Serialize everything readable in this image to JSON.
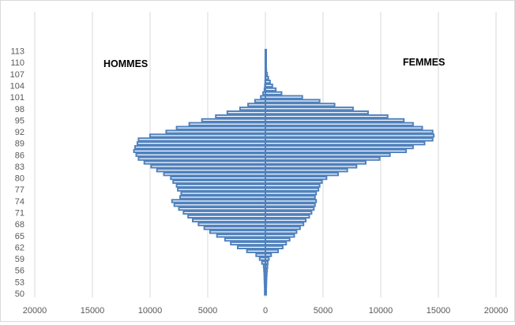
{
  "chart_data": {
    "type": "bar",
    "orientation": "horizontal",
    "subtype": "population-pyramid",
    "title": "",
    "xlabel": "",
    "ylabel": "",
    "xlim": [
      -20000,
      20000
    ],
    "x_ticks": [
      -20000,
      -15000,
      -10000,
      -5000,
      0,
      5000,
      10000,
      15000,
      20000
    ],
    "x_tick_labels": [
      "20000",
      "15000",
      "10000",
      "5000",
      "0",
      "5000",
      "10000",
      "15000",
      "20000"
    ],
    "y_tick_labels": [
      "50",
      "53",
      "56",
      "59",
      "62",
      "65",
      "68",
      "71",
      "74",
      "77",
      "80",
      "83",
      "86",
      "89",
      "92",
      "95",
      "98",
      "101",
      "104",
      "107",
      "110",
      "113"
    ],
    "categories": [
      50,
      51,
      52,
      53,
      54,
      55,
      56,
      57,
      58,
      59,
      60,
      61,
      62,
      63,
      64,
      65,
      66,
      67,
      68,
      69,
      70,
      71,
      72,
      73,
      74,
      75,
      76,
      77,
      78,
      79,
      80,
      81,
      82,
      83,
      84,
      85,
      86,
      87,
      88,
      89,
      90,
      91,
      92,
      93,
      94,
      95,
      96,
      97,
      98,
      99,
      100,
      101,
      102,
      103,
      104,
      105,
      106,
      107,
      108,
      109,
      110,
      111,
      112,
      113
    ],
    "series": [
      {
        "name": "HOMMES",
        "color": "#4f81bd",
        "values": [
          60,
          60,
          70,
          80,
          90,
          100,
          120,
          150,
          300,
          500,
          800,
          1600,
          2400,
          3000,
          3500,
          4200,
          4800,
          5300,
          5800,
          6300,
          6700,
          7100,
          7500,
          7900,
          8100,
          7400,
          7300,
          7600,
          7700,
          8000,
          8200,
          8800,
          9400,
          9900,
          10500,
          11000,
          11200,
          11400,
          11300,
          11100,
          11000,
          10000,
          8600,
          7700,
          6600,
          5500,
          4300,
          3300,
          2200,
          1500,
          900,
          400,
          200,
          80,
          40,
          20,
          10,
          5,
          5,
          5,
          5,
          5,
          5,
          5
        ]
      },
      {
        "name": "FEMMES",
        "color": "#4f81bd",
        "values": [
          60,
          70,
          80,
          90,
          100,
          120,
          150,
          180,
          200,
          300,
          500,
          1100,
          1500,
          1800,
          2100,
          2500,
          2700,
          3000,
          3300,
          3500,
          3800,
          4000,
          4200,
          4300,
          4400,
          4300,
          4400,
          4600,
          4700,
          4900,
          5300,
          6300,
          7100,
          7900,
          8700,
          9900,
          10800,
          12200,
          12800,
          13800,
          14500,
          14600,
          14500,
          13600,
          12800,
          12000,
          10600,
          8900,
          7600,
          6000,
          4700,
          3200,
          1400,
          900,
          600,
          400,
          250,
          150,
          80,
          40,
          20,
          10,
          10,
          5
        ]
      }
    ],
    "annotations": [
      "HOMMES",
      "FEMMES"
    ],
    "grid": true,
    "legend": "none"
  }
}
